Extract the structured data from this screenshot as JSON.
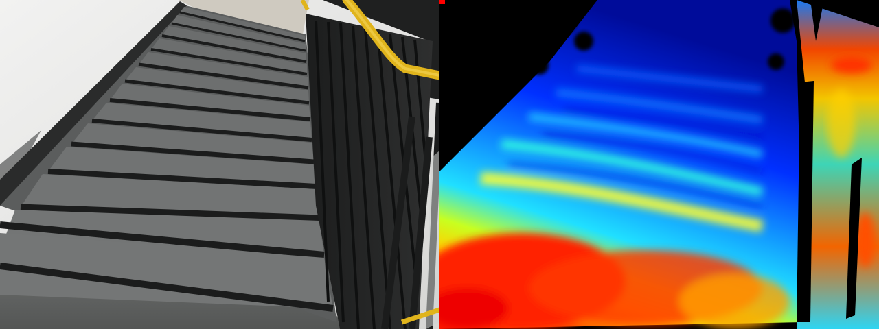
{
  "scene": {
    "panels": [
      {
        "kind": "rgb-photo",
        "subject": "staircase"
      },
      {
        "kind": "depth-heatmap",
        "subject": "staircase",
        "colormap": "jet"
      }
    ],
    "colors": {
      "wall": "#ebebea",
      "wall_shade": "#d9d9d7",
      "tread": "#5a5c5c",
      "tread_light": "#6c6e6e",
      "riser": "#4a4c4c",
      "nosing": "#1b1c1c",
      "stringer": "#2a2b2b",
      "railing": "#232424",
      "handrail": "#e0b41c",
      "floor": "#5e605f",
      "depth_near": "#ff2200",
      "depth_mid": "#ffff00",
      "depth_far": "#0010c8",
      "depth_void": "#000000"
    }
  }
}
